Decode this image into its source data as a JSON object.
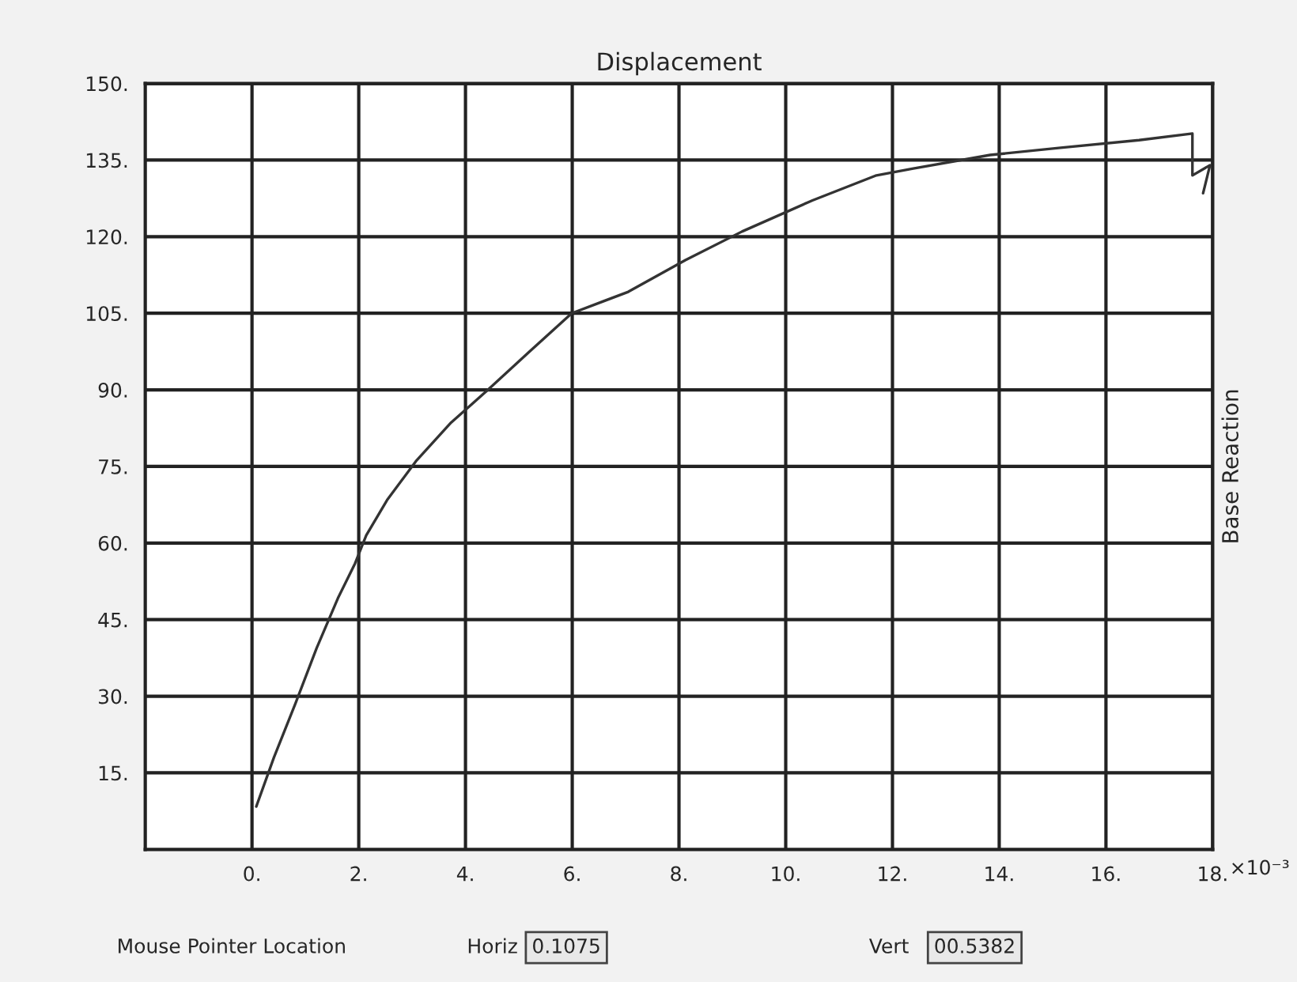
{
  "chart_data": {
    "type": "line",
    "title": "Displacement",
    "ylabel": "Base Reaction",
    "x": [
      0.08,
      0.41,
      0.81,
      1.21,
      1.61,
      1.93,
      2.14,
      2.53,
      3.07,
      3.73,
      4.4,
      5.19,
      5.99,
      7.05,
      8.12,
      9.18,
      10.5,
      11.7,
      12.37,
      13.83,
      15.15,
      16.62,
      17.62,
      17.62,
      17.95,
      17.82
    ],
    "series": [
      {
        "color": "#333333",
        "values": [
          8.4,
          18,
          28.5,
          39.4,
          49.2,
          56,
          61.5,
          68.4,
          76,
          83.6,
          89.8,
          97.4,
          105,
          109.2,
          115.4,
          121,
          127.1,
          132,
          133.3,
          136,
          137.4,
          138.9,
          140.2,
          132,
          134,
          128.5
        ]
      }
    ],
    "xlim": [
      -2,
      18
    ],
    "xticks": [
      {
        "value": 0,
        "label": "0."
      },
      {
        "value": 2,
        "label": "2."
      },
      {
        "value": 4,
        "label": "4."
      },
      {
        "value": 6,
        "label": "6."
      },
      {
        "value": 8,
        "label": "8."
      },
      {
        "value": 10,
        "label": "10."
      },
      {
        "value": 12,
        "label": "12."
      },
      {
        "value": 14,
        "label": "14."
      },
      {
        "value": 16,
        "label": "16."
      },
      {
        "value": 18,
        "label": "18."
      }
    ],
    "ylim": [
      0,
      150
    ],
    "yticks": [
      {
        "value": 15,
        "label": "15."
      },
      {
        "value": 30,
        "label": "30."
      },
      {
        "value": 45,
        "label": "45."
      },
      {
        "value": 60,
        "label": "60."
      },
      {
        "value": 75,
        "label": "75."
      },
      {
        "value": 90,
        "label": "90."
      },
      {
        "value": 105,
        "label": "105."
      },
      {
        "value": 120,
        "label": "120."
      },
      {
        "value": 135,
        "label": "135."
      },
      {
        "value": 150,
        "label": "150."
      }
    ],
    "grid": true,
    "marker": "none",
    "line_style": "solid",
    "annotations": [
      "×10⁻³",
      "Mouse Pointer Location",
      "Horiz",
      "0.1075",
      "Vert",
      "00.5382"
    ]
  }
}
